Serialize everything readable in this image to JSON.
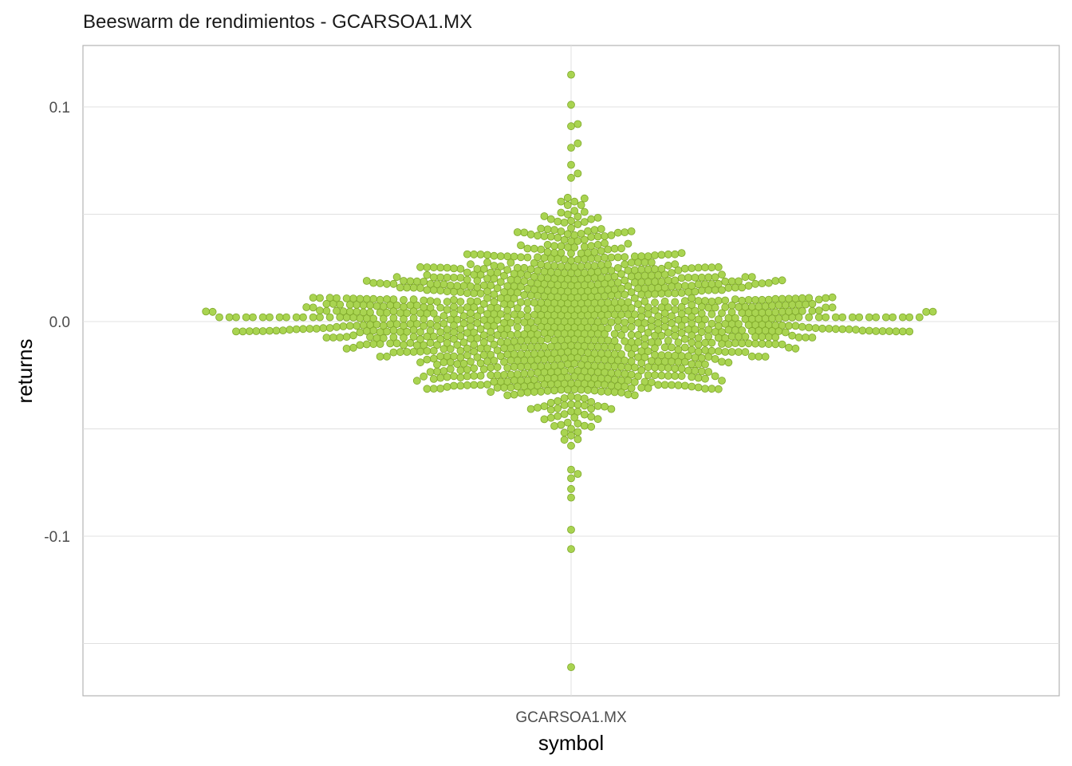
{
  "chart_data": {
    "type": "scatter",
    "subtype": "beeswarm",
    "title": "Beeswarm de rendimientos - GCARSOA1.MX",
    "xlabel": "symbol",
    "ylabel": "returns",
    "categories": [
      "GCARSOA1.MX"
    ],
    "ylim": [
      -0.175,
      0.128
    ],
    "y_ticks": [
      -0.1,
      0.0,
      0.1
    ],
    "y_tick_labels": [
      "-0.1",
      "0.0",
      "0.1"
    ],
    "y_minor_gridlines": [
      -0.15,
      -0.05,
      0.05
    ],
    "grid": true,
    "legend": "none",
    "colors": {
      "point_fill": "#9ACD32",
      "point_stroke": "#7FA82B",
      "grid": "#e0e0e0",
      "panel_border": "#b3b3b3"
    },
    "distribution": {
      "count": 1250,
      "mean": 0.0,
      "sd": 0.022,
      "center_peak": 0.002
    },
    "outliers": [
      0.115,
      0.101,
      0.092,
      0.091,
      0.083,
      0.081,
      0.073,
      0.069,
      0.067,
      -0.069,
      -0.071,
      -0.073,
      -0.078,
      -0.082,
      -0.097,
      -0.106,
      -0.161
    ]
  }
}
